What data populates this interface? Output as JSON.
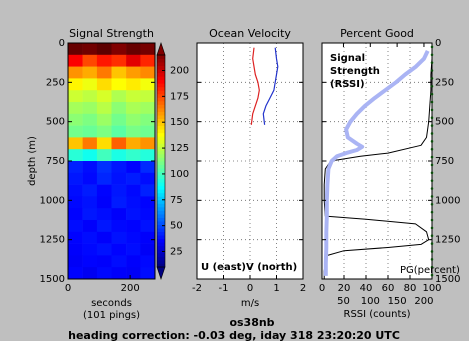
{
  "figure": {
    "station": "os38nb",
    "caption": "heading correction: -0.03 deg, iday 318 23:20:20 UTC"
  },
  "chart_data": [
    {
      "type": "heatmap",
      "title": "Signal Strength",
      "ylabel": "depth (m)",
      "xlabel": [
        "seconds",
        "(101 pings)"
      ],
      "xlim": [
        0,
        280
      ],
      "xticks": [
        0,
        200
      ],
      "ylim": [
        0,
        1500
      ],
      "yticks": [
        0,
        250,
        500,
        750,
        1000,
        1250,
        1500
      ],
      "y_inverted": true,
      "ytick_side": "left",
      "colormap": "jet",
      "xbins": [
        0,
        47,
        93,
        140,
        187,
        233,
        280
      ],
      "ybins": [
        0,
        75,
        150,
        225,
        300,
        375,
        450,
        525,
        600,
        675,
        750,
        825,
        900,
        975,
        1050,
        1125,
        1200,
        1275,
        1350,
        1425,
        1500
      ],
      "values": [
        [
          220,
          218,
          222,
          215,
          220,
          217
        ],
        [
          190,
          175,
          185,
          180,
          195,
          182
        ],
        [
          160,
          155,
          165,
          150,
          158,
          162
        ],
        [
          140,
          135,
          145,
          138,
          142,
          136
        ],
        [
          128,
          125,
          130,
          122,
          127,
          126
        ],
        [
          120,
          118,
          124,
          115,
          121,
          119
        ],
        [
          115,
          112,
          118,
          110,
          116,
          113
        ],
        [
          110,
          108,
          112,
          105,
          111,
          109
        ],
        [
          150,
          165,
          145,
          170,
          155,
          160
        ],
        [
          95,
          90,
          100,
          92,
          97,
          94
        ],
        [
          42,
          38,
          45,
          40,
          36,
          44
        ],
        [
          40,
          37,
          43,
          39,
          41,
          38
        ],
        [
          38,
          41,
          36,
          40,
          37,
          42
        ],
        [
          37,
          39,
          35,
          41,
          38,
          36
        ],
        [
          36,
          40,
          38,
          35,
          39,
          37
        ],
        [
          38,
          35,
          40,
          37,
          36,
          39
        ],
        [
          36,
          38,
          35,
          39,
          37,
          35
        ],
        [
          35,
          37,
          39,
          36,
          38,
          34
        ],
        [
          34,
          36,
          35,
          38,
          35,
          37
        ],
        [
          36,
          33,
          37,
          35,
          34,
          38
        ]
      ],
      "clim": [
        10,
        215
      ],
      "cticks": [
        25,
        50,
        75,
        100,
        125,
        150,
        175,
        200
      ],
      "colorbar_extend": "both"
    },
    {
      "type": "line",
      "title": "Ocean Velocity",
      "xlabel": [
        "m/s"
      ],
      "xlim": [
        -2,
        2
      ],
      "xticks": [
        -2,
        -1,
        0,
        1,
        2
      ],
      "ylim": [
        0,
        1500
      ],
      "yticks": [
        0,
        250,
        500,
        750,
        1000,
        1250,
        1500
      ],
      "y_inverted": true,
      "grid": true,
      "series": [
        {
          "name": "U (east)",
          "color": "#dd2222",
          "width": 1.2,
          "depth": [
            30,
            100,
            150,
            200,
            250,
            300,
            350,
            400,
            450,
            520
          ],
          "values": [
            0.15,
            0.1,
            0.15,
            0.2,
            0.3,
            0.35,
            0.3,
            0.2,
            0.1,
            0.05
          ]
        },
        {
          "name": "V (north)",
          "color": "#2233cc",
          "width": 1.2,
          "depth": [
            30,
            100,
            150,
            200,
            250,
            300,
            350,
            400,
            450,
            520
          ],
          "values": [
            0.95,
            1.0,
            1.05,
            1.0,
            0.95,
            0.9,
            0.75,
            0.6,
            0.5,
            0.55
          ]
        }
      ]
    },
    {
      "type": "line",
      "title": "Percent Good",
      "x2label": "RSSI (counts)",
      "xlim": [
        0,
        100
      ],
      "xticks": [
        0,
        20,
        40,
        60,
        80,
        100
      ],
      "xtick_color": "#1a9a1a",
      "x2lim": [
        10,
        215
      ],
      "x2ticks": [
        50,
        100,
        150,
        200
      ],
      "x2tick_color": "#4455ee",
      "ylim": [
        0,
        1500
      ],
      "yticks": [
        0,
        250,
        500,
        750,
        1000,
        1250,
        1500
      ],
      "y_inverted": true,
      "ytick_side": "right",
      "grid": true,
      "series": [
        {
          "color": "#000000",
          "width": 1,
          "depth": [
            0,
            100,
            200,
            300,
            400,
            500,
            600,
            650,
            700,
            720,
            750,
            800,
            900,
            1000,
            1100,
            1120,
            1150,
            1200,
            1250,
            1280,
            1300,
            1320,
            1350,
            1400,
            1450,
            1500
          ],
          "values": [
            100,
            100,
            99,
            99,
            98,
            97,
            95,
            90,
            60,
            35,
            8,
            3,
            2,
            2,
            3,
            40,
            85,
            95,
            97,
            90,
            60,
            20,
            5,
            3,
            2,
            2
          ]
        },
        {
          "name": "PG(percent)",
          "color": "#1a9a1a",
          "style": "dots",
          "depth": [
            25,
            75,
            125,
            175,
            225,
            275,
            325,
            375,
            425,
            475,
            525,
            575,
            625,
            675,
            725,
            775,
            825,
            875,
            925,
            975,
            1025,
            1075,
            1125,
            1175,
            1225,
            1275,
            1325,
            1375,
            1425,
            1475
          ],
          "values": [
            100,
            100,
            100,
            100,
            100,
            100,
            100,
            100,
            100,
            100,
            100,
            100,
            100,
            100,
            100,
            100,
            100,
            100,
            100,
            100,
            100,
            100,
            100,
            100,
            100,
            100,
            100,
            100,
            100,
            100
          ]
        },
        {
          "name_lines": [
            "Signal",
            "Strength",
            "(RSSI)"
          ],
          "color": "#aab4f4",
          "width": 4,
          "axis": "x2",
          "depth": [
            50,
            100,
            150,
            200,
            250,
            300,
            350,
            400,
            450,
            500,
            550,
            600,
            640,
            660,
            680,
            700,
            720,
            750,
            800,
            900,
            1000,
            1100,
            1200,
            1300,
            1400,
            1480
          ],
          "values": [
            207,
            200,
            185,
            165,
            148,
            128,
            108,
            90,
            75,
            63,
            55,
            58,
            75,
            85,
            75,
            55,
            38,
            28,
            22,
            20,
            19,
            19,
            18,
            18,
            17,
            17
          ]
        }
      ]
    }
  ]
}
